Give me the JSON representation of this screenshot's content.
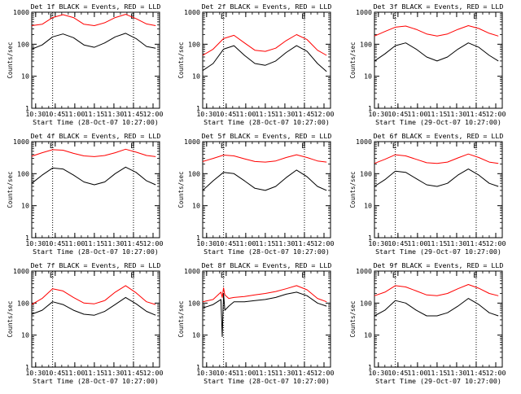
{
  "colors": {
    "events": "#000000",
    "lld": "#ff0000",
    "axes": "#000000",
    "background": "#ffffff"
  },
  "chart_data": [
    {
      "type": "line",
      "title": "Det 1f BLACK = Events, RED = LLD",
      "xlabel": "Start Time (28-Oct-07 10:27:00)",
      "ylabel": "Counts/sec",
      "x_ticks": [
        "10:30",
        "10:45",
        "11:00",
        "11:15",
        "11:30",
        "11:45",
        "12:00"
      ],
      "y_ticks": [
        "1",
        "10",
        "100",
        "1000"
      ],
      "y_scale": "log",
      "ylim": [
        1,
        1000
      ],
      "xlim_minutes_after_start": [
        0,
        98
      ],
      "markers": [
        {
          "label": "E",
          "minutes_after_start": 16
        },
        {
          "label": "E",
          "minutes_after_start": 78
        }
      ],
      "x_minutes_after_start": [
        0,
        8,
        16,
        24,
        32,
        40,
        48,
        56,
        64,
        72,
        80,
        88,
        95
      ],
      "series": [
        {
          "name": "BLACK = Events",
          "color": "#000000",
          "values": [
            70,
            95,
            170,
            210,
            160,
            95,
            80,
            110,
            170,
            220,
            150,
            85,
            75
          ]
        },
        {
          "name": "RED = LLD",
          "color": "#ff0000",
          "values": [
            380,
            420,
            680,
            840,
            680,
            420,
            380,
            470,
            680,
            860,
            630,
            430,
            380
          ]
        }
      ]
    },
    {
      "type": "line",
      "title": "Det 2f BLACK = Events, RED = LLD",
      "xlabel": "Start Time (28-Oct-07 10:27:00)",
      "ylabel": "Counts/sec",
      "x_ticks": [
        "10:30",
        "10:45",
        "11:00",
        "11:15",
        "11:30",
        "11:45",
        "12:00"
      ],
      "y_ticks": [
        "1",
        "10",
        "100",
        "1000"
      ],
      "y_scale": "log",
      "ylim": [
        1,
        1000
      ],
      "xlim_minutes_after_start": [
        0,
        98
      ],
      "markers": [
        {
          "label": "E",
          "minutes_after_start": 16
        },
        {
          "label": "E",
          "minutes_after_start": 78
        }
      ],
      "x_minutes_after_start": [
        0,
        8,
        16,
        24,
        32,
        40,
        48,
        56,
        64,
        72,
        80,
        88,
        95
      ],
      "series": [
        {
          "name": "BLACK = Events",
          "color": "#000000",
          "values": [
            15,
            25,
            70,
            90,
            45,
            25,
            22,
            30,
            55,
            90,
            60,
            25,
            14
          ]
        },
        {
          "name": "RED = LLD",
          "color": "#ff0000",
          "values": [
            45,
            70,
            150,
            190,
            110,
            65,
            60,
            75,
            130,
            200,
            140,
            65,
            45
          ]
        }
      ]
    },
    {
      "type": "line",
      "title": "Det 3f BLACK = Events, RED = LLD",
      "xlabel": "Start Time (29-Oct-07 10:27:00)",
      "ylabel": "Counts/sec",
      "x_ticks": [
        "10:30",
        "10:45",
        "11:00",
        "11:15",
        "11:30",
        "11:45",
        "12:00"
      ],
      "y_ticks": [
        "1",
        "10",
        "100",
        "1000"
      ],
      "y_scale": "log",
      "ylim": [
        1,
        1000
      ],
      "xlim_minutes_after_start": [
        0,
        98
      ],
      "markers": [
        {
          "label": "E",
          "minutes_after_start": 16
        },
        {
          "label": "E",
          "minutes_after_start": 78
        }
      ],
      "x_minutes_after_start": [
        0,
        8,
        16,
        24,
        32,
        40,
        48,
        56,
        64,
        72,
        80,
        88,
        95
      ],
      "series": [
        {
          "name": "BLACK = Events",
          "color": "#000000",
          "values": [
            30,
            50,
            90,
            110,
            70,
            40,
            30,
            40,
            70,
            110,
            80,
            45,
            30
          ]
        },
        {
          "name": "RED = LLD",
          "color": "#ff0000",
          "values": [
            180,
            250,
            340,
            370,
            290,
            210,
            180,
            210,
            290,
            380,
            310,
            220,
            180
          ]
        }
      ]
    },
    {
      "type": "line",
      "title": "Det 4f BLACK = Events, RED = LLD",
      "xlabel": "Start Time (28-Oct-07 10:27:00)",
      "ylabel": "Counts/sec",
      "x_ticks": [
        "10:30",
        "10:45",
        "11:00",
        "11:15",
        "11:30",
        "11:45",
        "12:00"
      ],
      "y_ticks": [
        "1",
        "10",
        "100",
        "1000"
      ],
      "y_scale": "log",
      "ylim": [
        1,
        1000
      ],
      "xlim_minutes_after_start": [
        0,
        98
      ],
      "markers": [
        {
          "label": "E",
          "minutes_after_start": 16
        },
        {
          "label": "E",
          "minutes_after_start": 78
        }
      ],
      "x_minutes_after_start": [
        0,
        8,
        16,
        24,
        32,
        40,
        48,
        56,
        64,
        72,
        80,
        88,
        95
      ],
      "series": [
        {
          "name": "BLACK = Events",
          "color": "#000000",
          "values": [
            50,
            90,
            150,
            140,
            90,
            55,
            45,
            55,
            100,
            160,
            110,
            60,
            45
          ]
        },
        {
          "name": "RED = LLD",
          "color": "#ff0000",
          "values": [
            350,
            450,
            560,
            540,
            430,
            360,
            340,
            370,
            450,
            580,
            470,
            370,
            340
          ]
        }
      ]
    },
    {
      "type": "line",
      "title": "Det 5f BLACK = Events, RED = LLD",
      "xlabel": "Start Time (28-Oct-07 10:27:00)",
      "ylabel": "Counts/sec",
      "x_ticks": [
        "10:30",
        "10:45",
        "11:00",
        "11:15",
        "11:30",
        "11:45",
        "12:00"
      ],
      "y_ticks": [
        "1",
        "10",
        "100",
        "1000"
      ],
      "y_scale": "log",
      "ylim": [
        1,
        1000
      ],
      "xlim_minutes_after_start": [
        0,
        98
      ],
      "markers": [
        {
          "label": "E",
          "minutes_after_start": 16
        },
        {
          "label": "E",
          "minutes_after_start": 78
        }
      ],
      "x_minutes_after_start": [
        0,
        8,
        16,
        24,
        32,
        40,
        48,
        56,
        64,
        72,
        80,
        88,
        95
      ],
      "series": [
        {
          "name": "BLACK = Events",
          "color": "#000000",
          "values": [
            30,
            60,
            110,
            100,
            60,
            35,
            30,
            40,
            75,
            130,
            80,
            40,
            30
          ]
        },
        {
          "name": "RED = LLD",
          "color": "#ff0000",
          "values": [
            240,
            300,
            380,
            360,
            290,
            240,
            230,
            250,
            320,
            390,
            320,
            250,
            230
          ]
        }
      ]
    },
    {
      "type": "line",
      "title": "Det 6f BLACK = Events, RED = LLD",
      "xlabel": "Start Time (29-Oct-07 10:27:00)",
      "ylabel": "Counts/sec",
      "x_ticks": [
        "10:30",
        "10:45",
        "11:00",
        "11:15",
        "11:30",
        "11:45",
        "12:00"
      ],
      "y_ticks": [
        "1",
        "10",
        "100",
        "1000"
      ],
      "y_scale": "log",
      "ylim": [
        1,
        1000
      ],
      "xlim_minutes_after_start": [
        0,
        98
      ],
      "markers": [
        {
          "label": "E",
          "minutes_after_start": 16
        },
        {
          "label": "E",
          "minutes_after_start": 78
        }
      ],
      "x_minutes_after_start": [
        0,
        8,
        16,
        24,
        32,
        40,
        48,
        56,
        64,
        72,
        80,
        88,
        95
      ],
      "series": [
        {
          "name": "BLACK = Events",
          "color": "#000000",
          "values": [
            40,
            65,
            120,
            110,
            70,
            45,
            40,
            50,
            90,
            140,
            90,
            50,
            40
          ]
        },
        {
          "name": "RED = LLD",
          "color": "#ff0000",
          "values": [
            210,
            280,
            390,
            360,
            280,
            220,
            210,
            230,
            310,
            410,
            320,
            230,
            210
          ]
        }
      ]
    },
    {
      "type": "line",
      "title": "Det 7f BLACK = Events, RED = LLD",
      "xlabel": "Start Time (28-Oct-07 10:27:00)",
      "ylabel": "Counts/sec",
      "x_ticks": [
        "10:30",
        "10:45",
        "11:00",
        "11:15",
        "11:30",
        "11:45",
        "12:00"
      ],
      "y_ticks": [
        "1",
        "10",
        "100",
        "1000"
      ],
      "y_scale": "log",
      "ylim": [
        1,
        1000
      ],
      "xlim_minutes_after_start": [
        0,
        98
      ],
      "markers": [
        {
          "label": "E",
          "minutes_after_start": 16
        },
        {
          "label": "E",
          "minutes_after_start": 78
        }
      ],
      "x_minutes_after_start": [
        0,
        8,
        16,
        24,
        32,
        40,
        48,
        56,
        64,
        72,
        80,
        88,
        95
      ],
      "series": [
        {
          "name": "BLACK = Events",
          "color": "#000000",
          "values": [
            45,
            60,
            110,
            90,
            60,
            45,
            42,
            55,
            90,
            150,
            95,
            55,
            42
          ]
        },
        {
          "name": "RED = LLD",
          "color": "#ff0000",
          "values": [
            90,
            140,
            280,
            240,
            150,
            100,
            95,
            120,
            220,
            350,
            210,
            110,
            90
          ]
        }
      ]
    },
    {
      "type": "line",
      "title": "Det 8f BLACK = Events, RED = LLD",
      "xlabel": "Start Time (28-Oct-07 10:27:00)",
      "ylabel": "Counts/sec",
      "x_ticks": [
        "10:30",
        "10:45",
        "11:00",
        "11:15",
        "11:30",
        "11:45",
        "12:00"
      ],
      "y_ticks": [
        "1",
        "10",
        "100",
        "1000"
      ],
      "y_scale": "log",
      "ylim": [
        1,
        1000
      ],
      "xlim_minutes_after_start": [
        0,
        98
      ],
      "markers": [
        {
          "label": "E",
          "minutes_after_start": 16
        },
        {
          "label": "E",
          "minutes_after_start": 78
        }
      ],
      "x_minutes_after_start": [
        0,
        8,
        14,
        15,
        16,
        17,
        20,
        24,
        32,
        40,
        48,
        56,
        64,
        72,
        80,
        88,
        95
      ],
      "series": [
        {
          "name": "BLACK = Events",
          "color": "#000000",
          "values": [
            70,
            90,
            130,
            9,
            200,
            60,
            80,
            110,
            110,
            120,
            130,
            150,
            190,
            220,
            170,
            100,
            80
          ]
        },
        {
          "name": "RED = LLD",
          "color": "#ff0000",
          "values": [
            110,
            130,
            220,
            150,
            300,
            180,
            140,
            150,
            160,
            180,
            200,
            230,
            280,
            350,
            260,
            140,
            110
          ]
        }
      ]
    },
    {
      "type": "line",
      "title": "Det 9f BLACK = Events, RED = LLD",
      "xlabel": "Start Time (29-Oct-07 10:27:00)",
      "ylabel": "Counts/sec",
      "x_ticks": [
        "10:30",
        "10:45",
        "11:00",
        "11:15",
        "11:30",
        "11:45",
        "12:00"
      ],
      "y_ticks": [
        "1",
        "10",
        "100",
        "1000"
      ],
      "y_scale": "log",
      "ylim": [
        1,
        1000
      ],
      "xlim_minutes_after_start": [
        0,
        98
      ],
      "markers": [
        {
          "label": "E",
          "minutes_after_start": 16
        },
        {
          "label": "E",
          "minutes_after_start": 78
        }
      ],
      "x_minutes_after_start": [
        0,
        8,
        16,
        24,
        32,
        40,
        48,
        56,
        64,
        72,
        80,
        88,
        95
      ],
      "series": [
        {
          "name": "BLACK = Events",
          "color": "#000000",
          "values": [
            40,
            60,
            120,
            100,
            60,
            40,
            40,
            50,
            80,
            140,
            90,
            50,
            40
          ]
        },
        {
          "name": "RED = LLD",
          "color": "#ff0000",
          "values": [
            170,
            220,
            350,
            320,
            240,
            180,
            170,
            200,
            280,
            380,
            290,
            200,
            170
          ]
        }
      ]
    }
  ]
}
